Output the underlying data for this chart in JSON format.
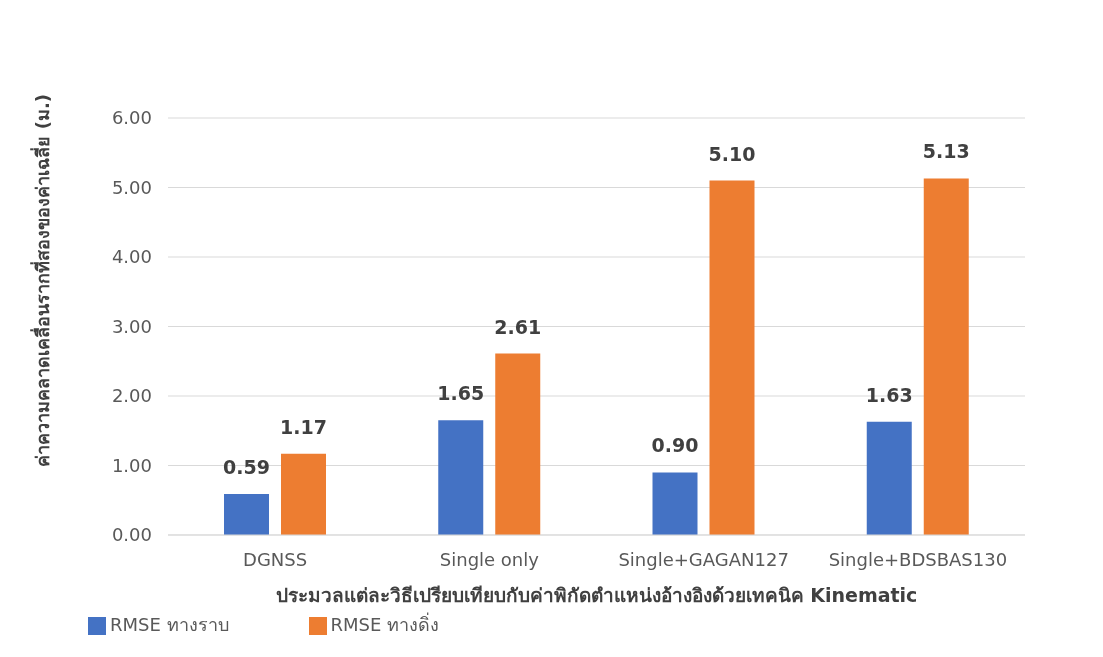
{
  "chart_data": {
    "type": "bar",
    "categories": [
      "DGNSS",
      "Single only",
      "Single+GAGAN127",
      "Single+BDSBAS130"
    ],
    "series": [
      {
        "name": "RMSE ทางราบ",
        "color": "#4472c4",
        "values": [
          0.59,
          1.65,
          0.9,
          1.63
        ],
        "value_labels": [
          "0.59",
          "1.65",
          "0.90",
          "1.63"
        ]
      },
      {
        "name": "RMSE ทางดิ่ง",
        "color": "#ed7d31",
        "values": [
          1.17,
          2.61,
          5.1,
          5.13
        ],
        "value_labels": [
          "1.17",
          "2.61",
          "5.10",
          "5.13"
        ]
      }
    ],
    "xlabel": "ประมวลแต่ละวิธีเปรียบเทียบกับค่าพิกัดตำแหน่งอ้างอิงด้วยเทคนิค Kinematic",
    "ylabel": "ค่าความคลาดเคลื่อนรากที่สองของค่าเฉลี่ย (ม.)",
    "ylim": [
      0,
      6
    ],
    "yticks": [
      {
        "value": 0,
        "label": "0.00"
      },
      {
        "value": 1,
        "label": "1.00"
      },
      {
        "value": 2,
        "label": "2.00"
      },
      {
        "value": 3,
        "label": "3.00"
      },
      {
        "value": 4,
        "label": "4.00"
      },
      {
        "value": 5,
        "label": "5.00"
      },
      {
        "value": 6,
        "label": "6.00"
      }
    ],
    "grid": "y",
    "legend": "bottom left"
  }
}
